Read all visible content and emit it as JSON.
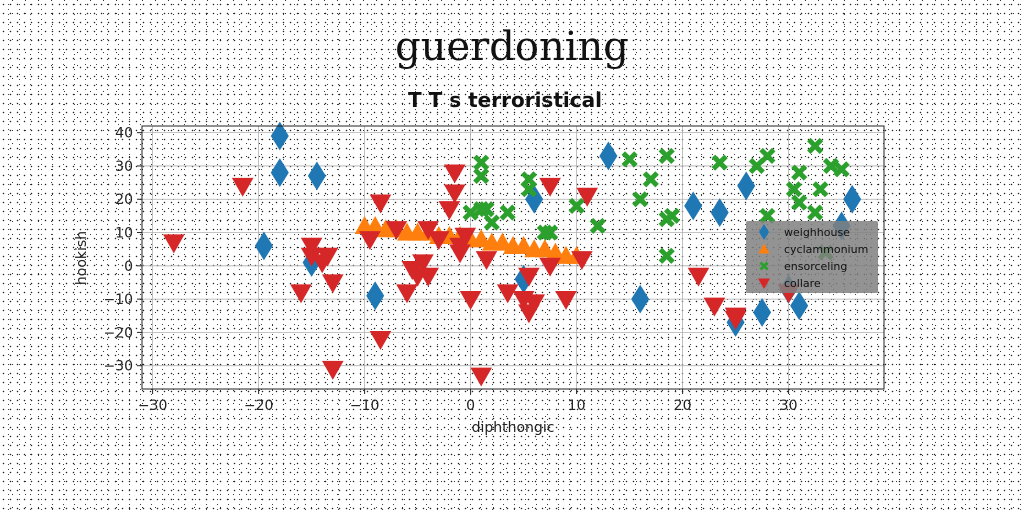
{
  "figure": {
    "suptitle": "guerdoning",
    "title": "T T s terroristical"
  },
  "chart_data": {
    "type": "scatter",
    "title": "T T s terroristical",
    "xlabel": "diphthongic",
    "ylabel": "hookish",
    "xlim": [
      -31,
      39
    ],
    "ylim": [
      -37,
      42
    ],
    "xticks": [
      -30,
      -20,
      -10,
      0,
      10,
      20,
      30
    ],
    "yticks": [
      -30,
      -20,
      -10,
      0,
      10,
      20,
      30,
      40
    ],
    "grid": true,
    "legend_position": "center-right",
    "series": [
      {
        "name": "weighhouse",
        "marker": "diamond",
        "color": "#1f77b4",
        "points": [
          [
            -18,
            39
          ],
          [
            -18,
            28
          ],
          [
            -19.5,
            6
          ],
          [
            -15,
            1
          ],
          [
            -14.5,
            27
          ],
          [
            -9,
            -9
          ],
          [
            5,
            -4
          ],
          [
            6,
            20
          ],
          [
            13,
            33
          ],
          [
            16,
            -10
          ],
          [
            21,
            18
          ],
          [
            23.5,
            16
          ],
          [
            25,
            -17
          ],
          [
            26,
            24
          ],
          [
            27.5,
            -14
          ],
          [
            31,
            -12
          ],
          [
            36,
            20
          ],
          [
            35,
            12
          ],
          [
            30,
            -7
          ]
        ]
      },
      {
        "name": "cyclammonium",
        "marker": "triangle-up",
        "color": "#ff7f0e",
        "points": [
          [
            -10,
            12
          ],
          [
            -9,
            12
          ],
          [
            -8,
            11
          ],
          [
            -7,
            11
          ],
          [
            -6,
            10
          ],
          [
            -5,
            10
          ],
          [
            -4,
            10
          ],
          [
            -3,
            9
          ],
          [
            -2,
            9
          ],
          [
            -1,
            9
          ],
          [
            0,
            8
          ],
          [
            1,
            8
          ],
          [
            2,
            7
          ],
          [
            3,
            7
          ],
          [
            4,
            6
          ],
          [
            5,
            6
          ],
          [
            6,
            5
          ],
          [
            7,
            5
          ],
          [
            8,
            4
          ],
          [
            9,
            3
          ],
          [
            10,
            3
          ]
        ]
      },
      {
        "name": "ensorceling",
        "marker": "x",
        "color": "#2ca02c",
        "points": [
          [
            1,
            31
          ],
          [
            1,
            27
          ],
          [
            0,
            16
          ],
          [
            1,
            17
          ],
          [
            1.5,
            17
          ],
          [
            2,
            13
          ],
          [
            3.5,
            16
          ],
          [
            5.5,
            26
          ],
          [
            5.5,
            23
          ],
          [
            7,
            10
          ],
          [
            7.5,
            10
          ],
          [
            10,
            18
          ],
          [
            12,
            12
          ],
          [
            15,
            32
          ],
          [
            16,
            20
          ],
          [
            17,
            26
          ],
          [
            18.5,
            33
          ],
          [
            19,
            15
          ],
          [
            18.5,
            14
          ],
          [
            18.5,
            3
          ],
          [
            23.5,
            31
          ],
          [
            27,
            30
          ],
          [
            28,
            33
          ],
          [
            28,
            15
          ],
          [
            31,
            28
          ],
          [
            30.5,
            23
          ],
          [
            31,
            19
          ],
          [
            32.5,
            36
          ],
          [
            32.5,
            16
          ],
          [
            33,
            23
          ],
          [
            34,
            30
          ],
          [
            35,
            29
          ],
          [
            33.5,
            4
          ]
        ]
      },
      {
        "name": "collare",
        "marker": "triangle-down",
        "color": "#d62728",
        "points": [
          [
            -28,
            7
          ],
          [
            -21.5,
            24
          ],
          [
            -16,
            -8
          ],
          [
            -15,
            6
          ],
          [
            -15,
            3
          ],
          [
            -14,
            1
          ],
          [
            -13.5,
            3
          ],
          [
            -13,
            -5
          ],
          [
            -13,
            -31
          ],
          [
            -9.5,
            8
          ],
          [
            -8.5,
            19
          ],
          [
            -8.5,
            -22
          ],
          [
            -7,
            11
          ],
          [
            -6,
            -8
          ],
          [
            -5.5,
            -1
          ],
          [
            -5,
            -3
          ],
          [
            -4.5,
            1
          ],
          [
            -4,
            11
          ],
          [
            -4,
            -3
          ],
          [
            -3,
            8
          ],
          [
            -2,
            17
          ],
          [
            -1.5,
            22
          ],
          [
            -1.5,
            28
          ],
          [
            -1,
            6
          ],
          [
            -1,
            4
          ],
          [
            -0.5,
            9
          ],
          [
            0,
            -10
          ],
          [
            1,
            -33
          ],
          [
            1.5,
            2
          ],
          [
            3.5,
            -8
          ],
          [
            5,
            -10
          ],
          [
            5.5,
            -14
          ],
          [
            5.5,
            -3
          ],
          [
            6,
            -11
          ],
          [
            7.5,
            0
          ],
          [
            7.5,
            24
          ],
          [
            9,
            -10
          ],
          [
            11,
            21
          ],
          [
            10.5,
            2
          ],
          [
            21.5,
            -3
          ],
          [
            23,
            -12
          ],
          [
            25,
            -15
          ],
          [
            25,
            -16
          ],
          [
            30,
            -8
          ]
        ]
      }
    ]
  }
}
